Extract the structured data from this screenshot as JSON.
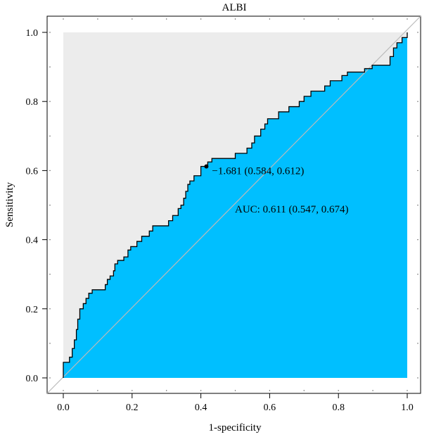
{
  "chart_data": {
    "type": "area",
    "title": "ALBI",
    "xlabel": "1-specificity",
    "ylabel": "Sensitivity",
    "xlim": [
      0,
      1
    ],
    "ylim": [
      0,
      1
    ],
    "xticks": [
      "0.0",
      "0.2",
      "0.4",
      "0.6",
      "0.8",
      "1.0"
    ],
    "yticks": [
      "0.0",
      "0.2",
      "0.4",
      "0.6",
      "0.8",
      "1.0"
    ],
    "grid": false,
    "colors": {
      "auc_fill": "#00bfff",
      "background_fill": "#ececec",
      "diagonal": "#bbbbbb"
    },
    "roc": [
      [
        0.0,
        0.0
      ],
      [
        0.0,
        0.045
      ],
      [
        0.018,
        0.045
      ],
      [
        0.018,
        0.06
      ],
      [
        0.026,
        0.06
      ],
      [
        0.026,
        0.085
      ],
      [
        0.032,
        0.085
      ],
      [
        0.032,
        0.11
      ],
      [
        0.038,
        0.11
      ],
      [
        0.038,
        0.14
      ],
      [
        0.042,
        0.14
      ],
      [
        0.042,
        0.17
      ],
      [
        0.048,
        0.17
      ],
      [
        0.048,
        0.2
      ],
      [
        0.058,
        0.2
      ],
      [
        0.058,
        0.215
      ],
      [
        0.066,
        0.215
      ],
      [
        0.066,
        0.23
      ],
      [
        0.074,
        0.23
      ],
      [
        0.074,
        0.245
      ],
      [
        0.084,
        0.245
      ],
      [
        0.084,
        0.255
      ],
      [
        0.122,
        0.255
      ],
      [
        0.122,
        0.27
      ],
      [
        0.128,
        0.27
      ],
      [
        0.128,
        0.285
      ],
      [
        0.136,
        0.285
      ],
      [
        0.136,
        0.295
      ],
      [
        0.146,
        0.295
      ],
      [
        0.146,
        0.31
      ],
      [
        0.15,
        0.31
      ],
      [
        0.15,
        0.33
      ],
      [
        0.158,
        0.33
      ],
      [
        0.158,
        0.34
      ],
      [
        0.176,
        0.34
      ],
      [
        0.176,
        0.35
      ],
      [
        0.188,
        0.35
      ],
      [
        0.188,
        0.37
      ],
      [
        0.196,
        0.37
      ],
      [
        0.196,
        0.38
      ],
      [
        0.214,
        0.38
      ],
      [
        0.214,
        0.395
      ],
      [
        0.228,
        0.395
      ],
      [
        0.228,
        0.41
      ],
      [
        0.25,
        0.41
      ],
      [
        0.25,
        0.425
      ],
      [
        0.26,
        0.425
      ],
      [
        0.26,
        0.44
      ],
      [
        0.306,
        0.44
      ],
      [
        0.306,
        0.455
      ],
      [
        0.318,
        0.455
      ],
      [
        0.318,
        0.47
      ],
      [
        0.334,
        0.47
      ],
      [
        0.334,
        0.49
      ],
      [
        0.342,
        0.49
      ],
      [
        0.342,
        0.5
      ],
      [
        0.35,
        0.5
      ],
      [
        0.35,
        0.52
      ],
      [
        0.356,
        0.52
      ],
      [
        0.356,
        0.54
      ],
      [
        0.362,
        0.54
      ],
      [
        0.362,
        0.56
      ],
      [
        0.368,
        0.56
      ],
      [
        0.368,
        0.57
      ],
      [
        0.38,
        0.57
      ],
      [
        0.38,
        0.585
      ],
      [
        0.4,
        0.585
      ],
      [
        0.4,
        0.612
      ],
      [
        0.42,
        0.612
      ],
      [
        0.42,
        0.625
      ],
      [
        0.432,
        0.625
      ],
      [
        0.432,
        0.635
      ],
      [
        0.5,
        0.635
      ],
      [
        0.5,
        0.65
      ],
      [
        0.534,
        0.65
      ],
      [
        0.534,
        0.665
      ],
      [
        0.548,
        0.665
      ],
      [
        0.548,
        0.68
      ],
      [
        0.556,
        0.68
      ],
      [
        0.556,
        0.7
      ],
      [
        0.574,
        0.7
      ],
      [
        0.574,
        0.72
      ],
      [
        0.586,
        0.72
      ],
      [
        0.586,
        0.735
      ],
      [
        0.594,
        0.735
      ],
      [
        0.594,
        0.75
      ],
      [
        0.626,
        0.75
      ],
      [
        0.626,
        0.77
      ],
      [
        0.656,
        0.77
      ],
      [
        0.656,
        0.785
      ],
      [
        0.686,
        0.785
      ],
      [
        0.686,
        0.8
      ],
      [
        0.7,
        0.8
      ],
      [
        0.7,
        0.815
      ],
      [
        0.72,
        0.815
      ],
      [
        0.72,
        0.83
      ],
      [
        0.76,
        0.83
      ],
      [
        0.76,
        0.845
      ],
      [
        0.776,
        0.845
      ],
      [
        0.776,
        0.86
      ],
      [
        0.81,
        0.86
      ],
      [
        0.81,
        0.875
      ],
      [
        0.826,
        0.875
      ],
      [
        0.826,
        0.885
      ],
      [
        0.876,
        0.885
      ],
      [
        0.876,
        0.895
      ],
      [
        0.898,
        0.895
      ],
      [
        0.898,
        0.905
      ],
      [
        0.95,
        0.905
      ],
      [
        0.95,
        0.93
      ],
      [
        0.96,
        0.93
      ],
      [
        0.96,
        0.955
      ],
      [
        0.97,
        0.955
      ],
      [
        0.97,
        0.97
      ],
      [
        0.985,
        0.97
      ],
      [
        0.985,
        0.985
      ],
      [
        1.0,
        0.985
      ],
      [
        1.0,
        1.0
      ]
    ],
    "cutoff_point": {
      "x": 0.416,
      "y": 0.612,
      "label": "−1.681 (0.584, 0.612)"
    },
    "auc_label": "AUC: 0.611 (0.547, 0.674)"
  }
}
